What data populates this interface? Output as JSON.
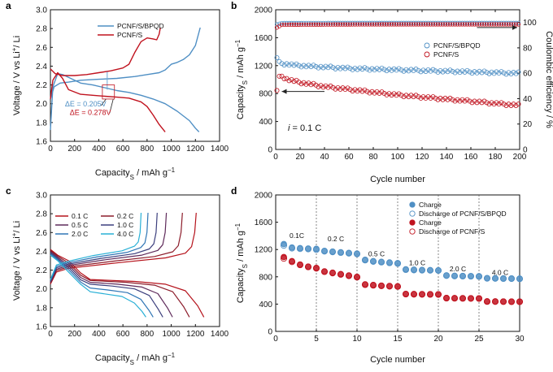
{
  "colors": {
    "blue": "#4f8fc4",
    "red": "#c0121e",
    "blue_light": "#6fa8d6",
    "red_dark": "#8b0f14"
  },
  "panel_labels": [
    "a",
    "b",
    "c",
    "d"
  ],
  "chart_data": [
    {
      "panel": "a",
      "type": "line",
      "xlabel": "Capacity_S / mAh g^-1",
      "ylabel": "Voltage / V vs Li+/ Li",
      "xlim": [
        0,
        1400
      ],
      "ylim": [
        1.6,
        3.0
      ],
      "xticks": [
        0,
        200,
        400,
        600,
        800,
        1000,
        1200,
        1400
      ],
      "yticks": [
        1.6,
        1.8,
        2.0,
        2.2,
        2.4,
        2.6,
        2.8,
        3.0
      ],
      "legend": "top-right",
      "annotations": [
        {
          "text": "ΔE = 0.205V",
          "color": "blue"
        },
        {
          "text": "ΔE = 0.278V",
          "color": "red"
        }
      ],
      "series": [
        {
          "name": "PCNF/S/BPQD",
          "color": "blue",
          "curves": [
            {
              "x": [
                0,
                20,
                60,
                100,
                150,
                250,
                350,
                450,
                550,
                650,
                750,
                850,
                950,
                1050,
                1150,
                1200,
                1230
              ],
              "y": [
                1.72,
                2.18,
                2.32,
                2.31,
                2.28,
                2.22,
                2.2,
                2.17,
                2.14,
                2.12,
                2.09,
                2.05,
                2.0,
                1.92,
                1.82,
                1.74,
                1.7
              ]
            },
            {
              "x": [
                0,
                30,
                80,
                150,
                250,
                400,
                550,
                700,
                800,
                900,
                950,
                1000,
                1050,
                1100,
                1150,
                1200,
                1240
              ],
              "y": [
                2.05,
                2.18,
                2.22,
                2.23,
                2.25,
                2.26,
                2.27,
                2.29,
                2.31,
                2.33,
                2.36,
                2.42,
                2.44,
                2.47,
                2.52,
                2.62,
                2.81
              ]
            }
          ]
        },
        {
          "name": "PCNF/S",
          "color": "red",
          "curves": [
            {
              "x": [
                0,
                20,
                60,
                100,
                150,
                250,
                350,
                450,
                550,
                650,
                750,
                800,
                850,
                900,
                950
              ],
              "y": [
                2.05,
                2.25,
                2.33,
                2.27,
                2.15,
                2.1,
                2.09,
                2.08,
                2.07,
                2.06,
                2.02,
                1.97,
                1.88,
                1.78,
                1.7
              ]
            },
            {
              "x": [
                0,
                40,
                100,
                200,
                300,
                400,
                500,
                600,
                650,
                700,
                750,
                800,
                850,
                880,
                900,
                910
              ],
              "y": [
                2.37,
                2.32,
                2.3,
                2.3,
                2.31,
                2.33,
                2.35,
                2.38,
                2.42,
                2.55,
                2.66,
                2.7,
                2.69,
                2.68,
                2.74,
                2.81
              ]
            }
          ]
        }
      ]
    },
    {
      "panel": "b",
      "type": "scatter",
      "xlabel": "Cycle number",
      "ylabel": "Capacity_S / mAh g^-1",
      "ylabel_right": "Coulombic efficiency / %",
      "xlim": [
        0,
        200
      ],
      "ylim": [
        0,
        2000
      ],
      "ylim_right": [
        0,
        110
      ],
      "xticks": [
        0,
        20,
        40,
        60,
        80,
        100,
        120,
        140,
        160,
        180,
        200
      ],
      "yticks": [
        0,
        400,
        800,
        1200,
        1600,
        2000
      ],
      "yticks_right": [
        0,
        20,
        40,
        60,
        80,
        100
      ],
      "legend": "right",
      "annotation": "i = 0.1 C",
      "series": [
        {
          "name": "PCNF/S/BPQD",
          "color": "blue",
          "marker": "open-circle",
          "capacity": {
            "x": [
              1,
              2,
              3,
              5,
              10,
              20,
              40,
              60,
              80,
              100,
              120,
              140,
              160,
              180,
              200
            ],
            "y": [
              1320,
              1260,
              1240,
              1230,
              1220,
              1200,
              1180,
              1160,
              1150,
              1140,
              1130,
              1120,
              1110,
              1100,
              1090
            ]
          },
          "ce": {
            "x": [
              1,
              5,
              50,
              100,
              150,
              200
            ],
            "y": [
              98.5,
              99.5,
              99.6,
              99.6,
              99.6,
              99.6
            ]
          }
        },
        {
          "name": "PCNF/S",
          "color": "red",
          "marker": "open-circle",
          "capacity": {
            "x": [
              1,
              2,
              3,
              5,
              8,
              10,
              20,
              40,
              60,
              80,
              100,
              120,
              140,
              160,
              180,
              200
            ],
            "y": [
              850,
              990,
              1030,
              1050,
              1020,
              1000,
              960,
              900,
              860,
              820,
              780,
              750,
              720,
              690,
              660,
              630
            ]
          },
          "ce": {
            "x": [
              1,
              5,
              50,
              100,
              150,
              200
            ],
            "y": [
              96,
              98.2,
              98.4,
              98.5,
              98.5,
              98.5
            ]
          }
        }
      ]
    },
    {
      "panel": "c",
      "type": "line",
      "xlabel": "Capacity_S / mAh g^-1",
      "ylabel": "Voltage / V vs Li+/ Li",
      "xlim": [
        0,
        1400
      ],
      "ylim": [
        1.6,
        3.0
      ],
      "xticks": [
        0,
        200,
        400,
        600,
        800,
        1000,
        1200,
        1400
      ],
      "yticks": [
        1.6,
        1.8,
        2.0,
        2.2,
        2.4,
        2.6,
        2.8,
        3.0
      ],
      "legend": "top-left",
      "series": [
        {
          "name": "0.1 C",
          "color": "#b5121b",
          "cap": 1270,
          "plateau": 2.1
        },
        {
          "name": "0.2 C",
          "color": "#8c1c2a",
          "cap": 1150,
          "plateau": 2.09
        },
        {
          "name": "0.5 C",
          "color": "#5e2a5a",
          "cap": 1010,
          "plateau": 2.07
        },
        {
          "name": "1.0 C",
          "color": "#3c3f7d",
          "cap": 930,
          "plateau": 2.05
        },
        {
          "name": "2.0 C",
          "color": "#2f75b5",
          "cap": 850,
          "plateau": 2.01
        },
        {
          "name": "4.0 C",
          "color": "#29b0d6",
          "cap": 790,
          "plateau": 1.97
        }
      ]
    },
    {
      "panel": "d",
      "type": "scatter",
      "xlabel": "Cycle number",
      "ylabel": "Capacity_S / mAh g^-1",
      "xlim": [
        0,
        30
      ],
      "ylim": [
        0,
        2000
      ],
      "xticks": [
        0,
        5,
        10,
        15,
        20,
        25,
        30
      ],
      "yticks": [
        0,
        400,
        800,
        1200,
        1600,
        2000
      ],
      "legend": "top-right",
      "rate_labels": [
        {
          "text": "0.1C",
          "x": 2.6,
          "y": 1370
        },
        {
          "text": "0.2 C",
          "x": 7.4,
          "y": 1320
        },
        {
          "text": "0.5 C",
          "x": 12.4,
          "y": 1100
        },
        {
          "text": "1.0 C",
          "x": 17.4,
          "y": 970
        },
        {
          "text": "2.0 C",
          "x": 22.4,
          "y": 880
        },
        {
          "text": "4.0 C",
          "x": 27.6,
          "y": 830
        }
      ],
      "series": [
        {
          "name": "Charge",
          "color": "blue",
          "marker": "filled-circle",
          "x": [
            1,
            2,
            3,
            4,
            5,
            6,
            7,
            8,
            9,
            10,
            11,
            12,
            13,
            14,
            15,
            16,
            17,
            18,
            19,
            20,
            21,
            22,
            23,
            24,
            25,
            26,
            27,
            28,
            29,
            30
          ],
          "y": [
            1280,
            1230,
            1220,
            1215,
            1210,
            1180,
            1170,
            1160,
            1150,
            1140,
            1050,
            1030,
            1020,
            1010,
            1000,
            910,
            905,
            900,
            898,
            895,
            820,
            815,
            812,
            810,
            808,
            780,
            778,
            776,
            775,
            773
          ]
        },
        {
          "name": "Discharge of PCNF/S/BPQD",
          "color": "blue",
          "marker": "open-circle",
          "x": [
            1,
            2,
            3,
            4,
            5,
            6,
            7,
            8,
            9,
            10,
            11,
            12,
            13,
            14,
            15,
            16,
            17,
            18,
            19,
            20,
            21,
            22,
            23,
            24,
            25,
            26,
            27,
            28,
            29,
            30
          ],
          "y": [
            1260,
            1220,
            1212,
            1208,
            1200,
            1175,
            1165,
            1155,
            1145,
            1135,
            1045,
            1025,
            1015,
            1005,
            995,
            905,
            900,
            897,
            895,
            892,
            818,
            812,
            810,
            808,
            805,
            778,
            776,
            774,
            773,
            771
          ]
        },
        {
          "name": "Charge",
          "color": "red",
          "marker": "filled-circle",
          "x": [
            1,
            2,
            3,
            4,
            5,
            6,
            7,
            8,
            9,
            10,
            11,
            12,
            13,
            14,
            15,
            16,
            17,
            18,
            19,
            20,
            21,
            22,
            23,
            24,
            25,
            26,
            27,
            28,
            29,
            30
          ],
          "y": [
            1090,
            1030,
            980,
            950,
            930,
            880,
            860,
            840,
            820,
            800,
            690,
            680,
            670,
            665,
            660,
            550,
            548,
            546,
            545,
            544,
            490,
            488,
            486,
            485,
            484,
            440,
            439,
            438,
            437,
            436
          ]
        },
        {
          "name": "Discharge of PCNF/S",
          "color": "red",
          "marker": "open-circle",
          "x": [
            1,
            2,
            3,
            4,
            5,
            6,
            7,
            8,
            9,
            10,
            11,
            12,
            13,
            14,
            15,
            16,
            17,
            18,
            19,
            20,
            21,
            22,
            23,
            24,
            25,
            26,
            27,
            28,
            29,
            30
          ],
          "y": [
            1070,
            1020,
            975,
            945,
            925,
            875,
            855,
            835,
            815,
            795,
            685,
            676,
            668,
            662,
            658,
            546,
            544,
            543,
            542,
            541,
            487,
            485,
            484,
            483,
            482,
            438,
            437,
            436,
            435,
            434
          ]
        }
      ]
    }
  ]
}
